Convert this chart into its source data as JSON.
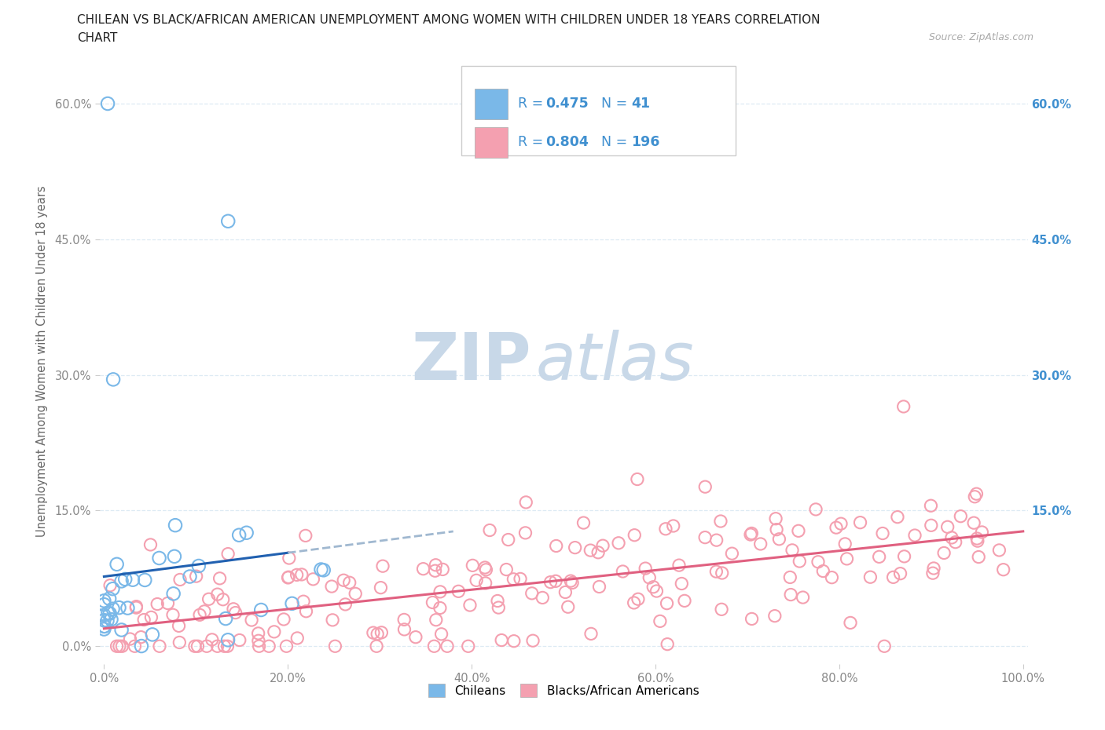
{
  "title_line1": "CHILEAN VS BLACK/AFRICAN AMERICAN UNEMPLOYMENT AMONG WOMEN WITH CHILDREN UNDER 18 YEARS CORRELATION",
  "title_line2": "CHART",
  "source": "Source: ZipAtlas.com",
  "ylabel": "Unemployment Among Women with Children Under 18 years",
  "xlim": [
    -0.005,
    1.005
  ],
  "ylim": [
    -0.02,
    0.65
  ],
  "yticks": [
    0.0,
    0.15,
    0.3,
    0.45,
    0.6
  ],
  "ytick_labels": [
    "0.0%",
    "15.0%",
    "30.0%",
    "45.0%",
    "60.0%"
  ],
  "xticks": [
    0.0,
    0.2,
    0.4,
    0.6,
    0.8,
    1.0
  ],
  "xtick_labels": [
    "0.0%",
    "20.0%",
    "40.0%",
    "60.0%",
    "80.0%",
    "100.0%"
  ],
  "right_ytick_values": [
    0.6,
    0.45,
    0.3,
    0.15
  ],
  "right_ytick_labels": [
    "60.0%",
    "45.0%",
    "30.0%",
    "15.0%"
  ],
  "R_chilean": 0.475,
  "N_chilean": 41,
  "R_black": 0.804,
  "N_black": 196,
  "chilean_color": "#7ab8e8",
  "black_color": "#f4a0b0",
  "chilean_line_color": "#2060b0",
  "chilean_line_dashed_color": "#a0b8d0",
  "black_line_color": "#e06080",
  "text_blue": "#4090d0",
  "watermark_zip": "ZIP",
  "watermark_atlas": "atlas",
  "watermark_color_zip": "#c8d8e8",
  "watermark_color_atlas": "#c8d8e8",
  "watermark_fontsize": 60,
  "legend_label_1": "Chileans",
  "legend_label_2": "Blacks/African Americans",
  "grid_color": "#ddeaf4",
  "tick_color": "#888888",
  "title_color": "#222222",
  "source_color": "#aaaaaa"
}
